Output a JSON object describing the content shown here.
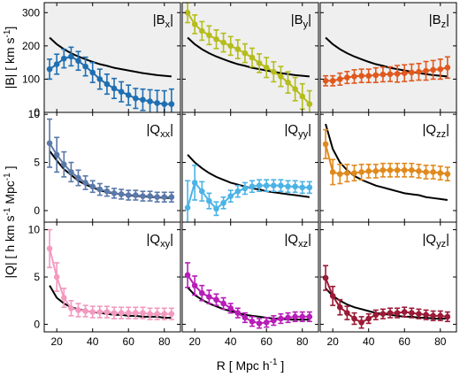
{
  "figure": {
    "xlabel": "R  [ Mpc h",
    "xlabel_sup": "-1",
    "xlabel_end": "]",
    "row_labels": [
      {
        "main": "|B|  [ km s",
        "sup": "-1",
        "end": "]"
      },
      {
        "main": "|Q|  [ h km s",
        "sup": "-1",
        "mid": " Mpc",
        "sup2": "-1",
        "end": " ]"
      }
    ],
    "row_label_note": "Q row label spans rows 2-3"
  },
  "chart_data": [
    {
      "type": "line",
      "name": "|Bx|",
      "row": 0,
      "col": 0,
      "color": "#1f6fb2",
      "ylim": [
        0,
        330
      ],
      "yticks": [
        0,
        100,
        200,
        300
      ],
      "xlim": [
        13,
        89
      ],
      "xticks": [
        20,
        40,
        60,
        80
      ],
      "shaded": true,
      "x": [
        16,
        20,
        24,
        28,
        32,
        36,
        40,
        44,
        48,
        52,
        56,
        60,
        64,
        68,
        72,
        76,
        80,
        84
      ],
      "y": [
        130,
        145,
        162,
        168,
        155,
        138,
        120,
        100,
        85,
        72,
        62,
        52,
        42,
        38,
        33,
        28,
        25,
        25
      ],
      "err": [
        30,
        30,
        28,
        28,
        28,
        28,
        30,
        30,
        30,
        30,
        30,
        30,
        30,
        32,
        35,
        38,
        40,
        45
      ],
      "model": [
        225,
        205,
        190,
        178,
        168,
        160,
        152,
        145,
        140,
        134,
        130,
        126,
        122,
        118,
        115,
        112,
        110,
        108
      ]
    },
    {
      "type": "line",
      "name": "|By|",
      "row": 0,
      "col": 1,
      "color": "#b5bd1c",
      "ylim": [
        0,
        330
      ],
      "yticks": [
        0,
        100,
        200,
        300
      ],
      "xlim": [
        13,
        89
      ],
      "xticks": [
        20,
        40,
        60,
        80
      ],
      "shaded": true,
      "x": [
        16,
        20,
        24,
        28,
        32,
        36,
        40,
        44,
        48,
        52,
        56,
        60,
        64,
        68,
        72,
        76,
        80,
        84
      ],
      "y": [
        300,
        265,
        245,
        232,
        220,
        210,
        200,
        190,
        178,
        165,
        148,
        135,
        122,
        108,
        90,
        70,
        48,
        25
      ],
      "err": [
        30,
        28,
        28,
        28,
        28,
        28,
        28,
        28,
        28,
        28,
        28,
        30,
        30,
        30,
        32,
        35,
        38,
        40
      ],
      "model": [
        225,
        205,
        190,
        178,
        168,
        160,
        152,
        145,
        140,
        134,
        130,
        126,
        122,
        118,
        115,
        112,
        110,
        108
      ]
    },
    {
      "type": "line",
      "name": "|Bz|",
      "row": 0,
      "col": 2,
      "color": "#e0581e",
      "ylim": [
        0,
        330
      ],
      "yticks": [
        0,
        100,
        200,
        300
      ],
      "xlim": [
        13,
        89
      ],
      "xticks": [
        20,
        40,
        60,
        80
      ],
      "shaded": true,
      "x": [
        16,
        20,
        24,
        28,
        32,
        36,
        40,
        44,
        48,
        52,
        56,
        60,
        64,
        68,
        72,
        76,
        80,
        84
      ],
      "y": [
        95,
        95,
        100,
        105,
        108,
        110,
        110,
        112,
        114,
        115,
        116,
        118,
        120,
        122,
        125,
        128,
        130,
        135
      ],
      "err": [
        15,
        15,
        18,
        18,
        20,
        20,
        20,
        22,
        22,
        22,
        25,
        25,
        25,
        25,
        28,
        28,
        30,
        32
      ],
      "model": [
        225,
        205,
        190,
        178,
        168,
        160,
        152,
        145,
        140,
        134,
        130,
        126,
        122,
        118,
        115,
        112,
        110,
        108
      ]
    },
    {
      "type": "line",
      "name": "|Qxx|",
      "row": 1,
      "col": 0,
      "color": "#5a78a8",
      "ylim": [
        -1.2,
        10.2
      ],
      "yticks": [
        0,
        5,
        10
      ],
      "xlim": [
        13,
        89
      ],
      "xticks": [
        20,
        40,
        60,
        80
      ],
      "shaded": false,
      "x": [
        16,
        20,
        24,
        28,
        32,
        36,
        40,
        44,
        48,
        52,
        56,
        60,
        64,
        68,
        72,
        76,
        80,
        84
      ],
      "y": [
        7.0,
        5.8,
        4.8,
        4.0,
        3.4,
        2.9,
        2.5,
        2.2,
        2.0,
        1.8,
        1.7,
        1.6,
        1.6,
        1.5,
        1.5,
        1.4,
        1.4,
        1.4
      ],
      "err": [
        2.5,
        1.8,
        1.3,
        1.0,
        0.8,
        0.7,
        0.6,
        0.6,
        0.5,
        0.5,
        0.5,
        0.5,
        0.5,
        0.5,
        0.5,
        0.5,
        0.5,
        0.5
      ],
      "model": [
        6.2,
        5.2,
        4.3,
        3.7,
        3.1,
        2.7,
        2.4,
        2.1,
        1.9,
        1.8,
        1.7,
        1.6,
        1.5,
        1.5,
        1.4,
        1.4,
        1.3,
        1.3
      ]
    },
    {
      "type": "line",
      "name": "|Qyy|",
      "row": 1,
      "col": 1,
      "color": "#4bb3e6",
      "ylim": [
        -1.2,
        10.2
      ],
      "yticks": [
        0,
        5,
        10
      ],
      "xlim": [
        13,
        89
      ],
      "xticks": [
        20,
        40,
        60,
        80
      ],
      "shaded": false,
      "x": [
        16,
        20,
        24,
        28,
        32,
        36,
        40,
        44,
        48,
        52,
        56,
        60,
        64,
        68,
        72,
        76,
        80,
        84
      ],
      "y": [
        0.3,
        2.9,
        2.0,
        1.0,
        0.2,
        0.8,
        1.5,
        2.0,
        2.3,
        2.5,
        2.6,
        2.6,
        2.6,
        2.6,
        2.5,
        2.5,
        2.4,
        2.4
      ],
      "err": [
        2.8,
        1.8,
        1.0,
        0.8,
        0.7,
        0.6,
        0.6,
        0.6,
        0.6,
        0.6,
        0.6,
        0.6,
        0.6,
        0.6,
        0.6,
        0.6,
        0.6,
        0.6
      ],
      "model": [
        5.8,
        5.0,
        4.4,
        3.9,
        3.5,
        3.2,
        2.9,
        2.7,
        2.5,
        2.3,
        2.2,
        2.0,
        1.9,
        1.8,
        1.7,
        1.6,
        1.5,
        1.4
      ]
    },
    {
      "type": "line",
      "name": "|Qzz|",
      "row": 1,
      "col": 2,
      "color": "#e08a1e",
      "ylim": [
        -1.2,
        10.2
      ],
      "yticks": [
        0,
        5,
        10
      ],
      "xlim": [
        13,
        89
      ],
      "xticks": [
        20,
        40,
        60,
        80
      ],
      "shaded": false,
      "x": [
        16,
        20,
        24,
        28,
        32,
        36,
        40,
        44,
        48,
        52,
        56,
        60,
        64,
        68,
        72,
        76,
        80,
        84
      ],
      "y": [
        6.9,
        4.0,
        3.8,
        3.9,
        3.9,
        4.0,
        4.1,
        4.1,
        4.2,
        4.2,
        4.2,
        4.2,
        4.2,
        4.1,
        4.0,
        4.0,
        3.9,
        3.8
      ],
      "err": [
        1.5,
        1.3,
        1.0,
        0.9,
        0.8,
        0.8,
        0.7,
        0.7,
        0.7,
        0.7,
        0.7,
        0.7,
        0.7,
        0.7,
        0.7,
        0.7,
        0.7,
        0.7
      ],
      "model": [
        9.0,
        6.4,
        5.0,
        4.2,
        3.6,
        3.2,
        2.9,
        2.6,
        2.4,
        2.2,
        2.0,
        1.8,
        1.7,
        1.6,
        1.4,
        1.3,
        1.2,
        1.1
      ]
    },
    {
      "type": "line",
      "name": "|Qxy|",
      "row": 2,
      "col": 0,
      "color": "#f29ac0",
      "ylim": [
        -0.8,
        10.8
      ],
      "yticks": [
        0,
        5,
        10
      ],
      "xlim": [
        13,
        89
      ],
      "xticks": [
        20,
        40,
        60,
        80
      ],
      "shaded": false,
      "x": [
        16,
        20,
        24,
        28,
        32,
        36,
        40,
        44,
        48,
        52,
        56,
        60,
        64,
        68,
        72,
        76,
        80,
        84
      ],
      "y": [
        8.0,
        5.0,
        2.8,
        1.7,
        1.5,
        1.4,
        1.3,
        1.3,
        1.3,
        1.2,
        1.2,
        1.2,
        1.2,
        1.2,
        1.1,
        1.1,
        1.1,
        1.1
      ],
      "err": [
        2.0,
        1.5,
        1.0,
        0.8,
        0.7,
        0.6,
        0.6,
        0.6,
        0.6,
        0.6,
        0.6,
        0.6,
        0.6,
        0.6,
        0.6,
        0.6,
        0.6,
        0.6
      ],
      "model": [
        4.1,
        2.8,
        2.2,
        1.8,
        1.6,
        1.4,
        1.3,
        1.2,
        1.1,
        1.0,
        1.0,
        0.9,
        0.9,
        0.8,
        0.8,
        0.8,
        0.7,
        0.7
      ]
    },
    {
      "type": "line",
      "name": "|Qxz|",
      "row": 2,
      "col": 1,
      "color": "#b81db8",
      "ylim": [
        -0.8,
        10.8
      ],
      "yticks": [
        0,
        5,
        10
      ],
      "xlim": [
        13,
        89
      ],
      "xticks": [
        20,
        40,
        60,
        80
      ],
      "shaded": false,
      "x": [
        16,
        20,
        24,
        28,
        32,
        36,
        40,
        44,
        48,
        52,
        56,
        60,
        64,
        68,
        72,
        76,
        80,
        84
      ],
      "y": [
        5.2,
        4.1,
        3.3,
        2.9,
        2.6,
        2.2,
        1.7,
        1.2,
        0.7,
        0.3,
        0.1,
        0.2,
        0.4,
        0.6,
        0.7,
        0.8,
        0.8,
        0.8
      ],
      "err": [
        1.3,
        1.0,
        0.8,
        0.7,
        0.6,
        0.6,
        0.5,
        0.5,
        0.5,
        0.5,
        0.5,
        0.5,
        0.5,
        0.5,
        0.5,
        0.5,
        0.5,
        0.5
      ],
      "model": [
        3.9,
        3.1,
        2.6,
        2.2,
        1.9,
        1.6,
        1.4,
        1.2,
        1.0,
        0.9,
        0.8,
        0.7,
        0.6,
        0.6,
        0.5,
        0.5,
        0.5,
        0.5
      ]
    },
    {
      "type": "line",
      "name": "|Qyz|",
      "row": 2,
      "col": 2,
      "color": "#9b1a36",
      "ylim": [
        -0.8,
        10.8
      ],
      "yticks": [
        0,
        5,
        10
      ],
      "xlim": [
        13,
        89
      ],
      "xticks": [
        20,
        40,
        60,
        80
      ],
      "shaded": false,
      "x": [
        16,
        20,
        24,
        28,
        32,
        36,
        40,
        44,
        48,
        52,
        56,
        60,
        64,
        68,
        72,
        76,
        80,
        84
      ],
      "y": [
        4.9,
        3.0,
        1.8,
        1.2,
        0.6,
        0.2,
        0.6,
        1.0,
        1.1,
        1.2,
        1.2,
        1.3,
        1.2,
        1.1,
        1.0,
        0.9,
        0.9,
        0.8
      ],
      "err": [
        1.3,
        1.0,
        0.8,
        0.7,
        0.6,
        0.6,
        0.5,
        0.5,
        0.5,
        0.5,
        0.5,
        0.5,
        0.5,
        0.5,
        0.5,
        0.5,
        0.5,
        0.5
      ],
      "model": [
        3.8,
        3.0,
        2.5,
        2.1,
        1.8,
        1.6,
        1.4,
        1.2,
        1.1,
        1.0,
        0.9,
        0.8,
        0.8,
        0.7,
        0.7,
        0.6,
        0.6,
        0.6
      ]
    }
  ]
}
